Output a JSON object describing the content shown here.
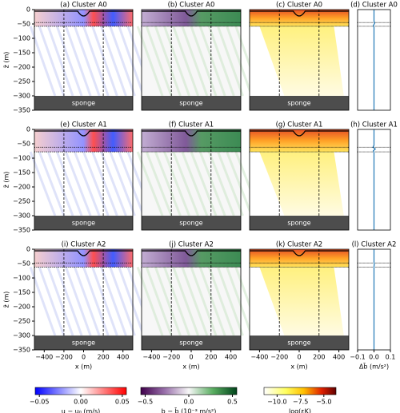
{
  "chart_data": [
    {
      "type": "heatmap",
      "cmap": "bwr",
      "title": "(a) Cluster A0",
      "xlim": [
        -500,
        500
      ],
      "ylim": [
        -350,
        0
      ],
      "vlines": [
        -200,
        200
      ],
      "hlines": [
        -45,
        -58
      ],
      "sponge": [
        -350,
        -300
      ],
      "annotation": "sponge",
      "ylabel": "z̃ (m)",
      "yticks": [
        0,
        {
          "value": -50,
          "label": "−50"
        },
        {
          "value": -100,
          "label": "−100"
        },
        {
          "value": -150,
          "label": "−150"
        },
        {
          "value": -200,
          "label": "−200"
        },
        {
          "value": -250,
          "label": "−250"
        },
        {
          "value": -300,
          "label": "−300"
        },
        {
          "value": -350,
          "label": "−350"
        }
      ]
    },
    {
      "type": "heatmap",
      "cmap": "PRGn",
      "title": "(b) Cluster A0",
      "xlim": [
        -500,
        500
      ],
      "ylim": [
        -350,
        0
      ],
      "vlines": [
        -200,
        200
      ],
      "hlines": [
        -45,
        -58
      ],
      "sponge": [
        -350,
        -300
      ],
      "annotation": "sponge"
    },
    {
      "type": "heatmap",
      "cmap": "hot_r",
      "title": "(c) Cluster A0",
      "xlim": [
        -500,
        500
      ],
      "ylim": [
        -350,
        0
      ],
      "vlines": [
        -200,
        200
      ],
      "hlines": [
        -45,
        -58
      ],
      "sponge": [
        -350,
        -300
      ],
      "annotation": "sponge"
    },
    {
      "type": "line",
      "title": "(d) Cluster A0",
      "xlim": [
        -0.1,
        0.1
      ],
      "ylim": [
        -350,
        0
      ],
      "hlines": [
        -45,
        -58
      ],
      "color": "#1f77b4",
      "x": [
        0,
        0,
        0.004,
        -0.004,
        0,
        0
      ],
      "y": [
        0,
        -40,
        -48,
        -55,
        -62,
        -350
      ]
    },
    {
      "type": "heatmap",
      "cmap": "bwr",
      "title": "(e) Cluster A1",
      "xlim": [
        -500,
        500
      ],
      "ylim": [
        -350,
        0
      ],
      "vlines": [
        -200,
        200
      ],
      "hlines": [
        -62,
        -78
      ],
      "sponge": [
        -350,
        -300
      ],
      "annotation": "sponge",
      "ylabel": "z̃ (m)",
      "yticks": [
        0,
        {
          "value": -50,
          "label": "−50"
        },
        {
          "value": -100,
          "label": "−100"
        },
        {
          "value": -150,
          "label": "−150"
        },
        {
          "value": -200,
          "label": "−200"
        },
        {
          "value": -250,
          "label": "−250"
        },
        {
          "value": -300,
          "label": "−300"
        },
        {
          "value": -350,
          "label": "−350"
        }
      ]
    },
    {
      "type": "heatmap",
      "cmap": "PRGn",
      "title": "(f) Cluster A1",
      "xlim": [
        -500,
        500
      ],
      "ylim": [
        -350,
        0
      ],
      "vlines": [
        -200,
        200
      ],
      "hlines": [
        -62,
        -78
      ],
      "sponge": [
        -350,
        -300
      ],
      "annotation": "sponge"
    },
    {
      "type": "heatmap",
      "cmap": "hot_r",
      "title": "(g) Cluster A1",
      "xlim": [
        -500,
        500
      ],
      "ylim": [
        -350,
        0
      ],
      "vlines": [
        -200,
        200
      ],
      "hlines": [
        -62,
        -78
      ],
      "sponge": [
        -350,
        -300
      ],
      "annotation": "sponge"
    },
    {
      "type": "line",
      "title": "(h) Cluster A1",
      "xlim": [
        -0.1,
        0.1
      ],
      "ylim": [
        -350,
        0
      ],
      "hlines": [
        -62,
        -78
      ],
      "color": "#1f77b4",
      "x": [
        0,
        0,
        -0.006,
        0.008,
        -0.004,
        0,
        0
      ],
      "y": [
        0,
        -55,
        -62,
        -68,
        -74,
        -80,
        -350
      ]
    },
    {
      "type": "heatmap",
      "cmap": "bwr",
      "title": "(i) Cluster A2",
      "xlim": [
        -500,
        500
      ],
      "ylim": [
        -350,
        0
      ],
      "vlines": [
        -200,
        200
      ],
      "hlines": [
        -48,
        -62
      ],
      "sponge": [
        -350,
        -300
      ],
      "annotation": "sponge",
      "ylabel": "z̃ (m)",
      "xlabel": "x (m)",
      "yticks": [
        0,
        {
          "value": -50,
          "label": "−50"
        },
        {
          "value": -100,
          "label": "−100"
        },
        {
          "value": -150,
          "label": "−150"
        },
        {
          "value": -200,
          "label": "−200"
        },
        {
          "value": -250,
          "label": "−250"
        },
        {
          "value": -300,
          "label": "−300"
        },
        {
          "value": -350,
          "label": "−350"
        }
      ],
      "xticks": [
        {
          "value": -400,
          "label": "−400"
        },
        {
          "value": -200,
          "label": "−200"
        },
        0,
        200,
        400
      ]
    },
    {
      "type": "heatmap",
      "cmap": "PRGn",
      "title": "(j) Cluster A2",
      "xlim": [
        -500,
        500
      ],
      "ylim": [
        -350,
        0
      ],
      "vlines": [
        -200,
        200
      ],
      "hlines": [
        -48,
        -62
      ],
      "sponge": [
        -350,
        -300
      ],
      "annotation": "sponge",
      "xlabel": "x (m)",
      "xticks": [
        {
          "value": -400,
          "label": "−400"
        },
        {
          "value": -200,
          "label": "−200"
        },
        0,
        200,
        400
      ]
    },
    {
      "type": "heatmap",
      "cmap": "hot_r",
      "title": "(k) Cluster A2",
      "xlim": [
        -500,
        500
      ],
      "ylim": [
        -350,
        0
      ],
      "vlines": [
        -200,
        200
      ],
      "hlines": [
        -48,
        -62
      ],
      "sponge": [
        -350,
        -300
      ],
      "annotation": "sponge",
      "xlabel": "x (m)",
      "xticks": [
        {
          "value": -400,
          "label": "−400"
        },
        {
          "value": -200,
          "label": "−200"
        },
        0,
        200,
        400
      ]
    },
    {
      "type": "line",
      "title": "(l) Cluster A2",
      "xlim": [
        -0.1,
        0.1
      ],
      "ylim": [
        -350,
        0
      ],
      "hlines": [
        -48,
        -62
      ],
      "color": "#1f77b4",
      "xlabel": "Δb̄ (m/s²)",
      "x": [
        0,
        0,
        0.002,
        0,
        0
      ],
      "y": [
        0,
        -45,
        -52,
        -60,
        -350
      ],
      "xticks": [
        {
          "value": -0.1,
          "label": "−0.1"
        },
        {
          "value": 0,
          "label": "0.0"
        },
        0.1
      ]
    }
  ],
  "colorbars": [
    {
      "label": "u − u₀ (m/s)",
      "cmap": "bwr",
      "lim": [
        -0.055,
        0.055
      ],
      "ticks": [
        {
          "value": -0.05,
          "label": "−0.05"
        },
        {
          "value": 0,
          "label": "0.00"
        },
        0.05
      ]
    },
    {
      "label": "b − b̄ (10⁻³ m/s²)",
      "cmap": "PRGn",
      "lim": [
        -0.55,
        0.55
      ],
      "ticks": [
        {
          "value": -0.5,
          "label": "−0.5"
        },
        {
          "value": 0,
          "label": "0.0"
        },
        0.5
      ]
    },
    {
      "label": "log(εK)",
      "cmap": "hot_r",
      "lim": [
        -11.4,
        -3.7
      ],
      "ticks": [
        {
          "value": -10,
          "label": "−10.0"
        },
        {
          "value": -7.5,
          "label": "−7.5"
        },
        {
          "value": -5,
          "label": "−5.0"
        }
      ]
    }
  ]
}
